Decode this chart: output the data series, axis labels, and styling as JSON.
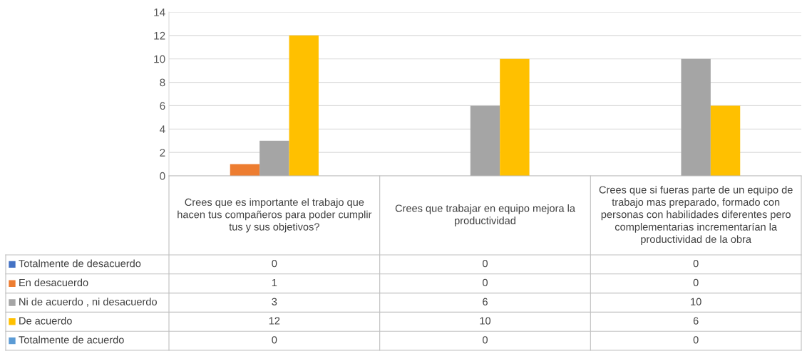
{
  "chart_data": {
    "type": "bar",
    "categories": [
      "Crees que es importante el trabajo que hacen tus compañeros para poder cumplir tus y sus objetivos?",
      "Crees que trabajar en equipo mejora la productividad",
      "Crees que si fueras parte de un equipo de trabajo mas preparado, formado con personas con habilidades diferentes pero complementarias incrementarían la productividad de la obra"
    ],
    "series": [
      {
        "name": "Totalmente de desacuerdo",
        "color": "#4472c4",
        "values": [
          0,
          0,
          0
        ]
      },
      {
        "name": "En desacuerdo",
        "color": "#ed7d31",
        "values": [
          1,
          0,
          0
        ]
      },
      {
        "name": "Ni de acuerdo , ni desacuerdo",
        "color": "#a5a5a5",
        "values": [
          3,
          6,
          10
        ]
      },
      {
        "name": "De acuerdo",
        "color": "#ffc000",
        "values": [
          12,
          10,
          6
        ]
      },
      {
        "name": "Totalmente de acuerdo",
        "color": "#5b9bd5",
        "values": [
          0,
          0,
          0
        ]
      }
    ],
    "ylim": [
      0,
      14
    ],
    "yticks": [
      0,
      2,
      4,
      6,
      8,
      10,
      12,
      14
    ],
    "grid": "y",
    "legend": "bottom left",
    "data_labels": true
  }
}
